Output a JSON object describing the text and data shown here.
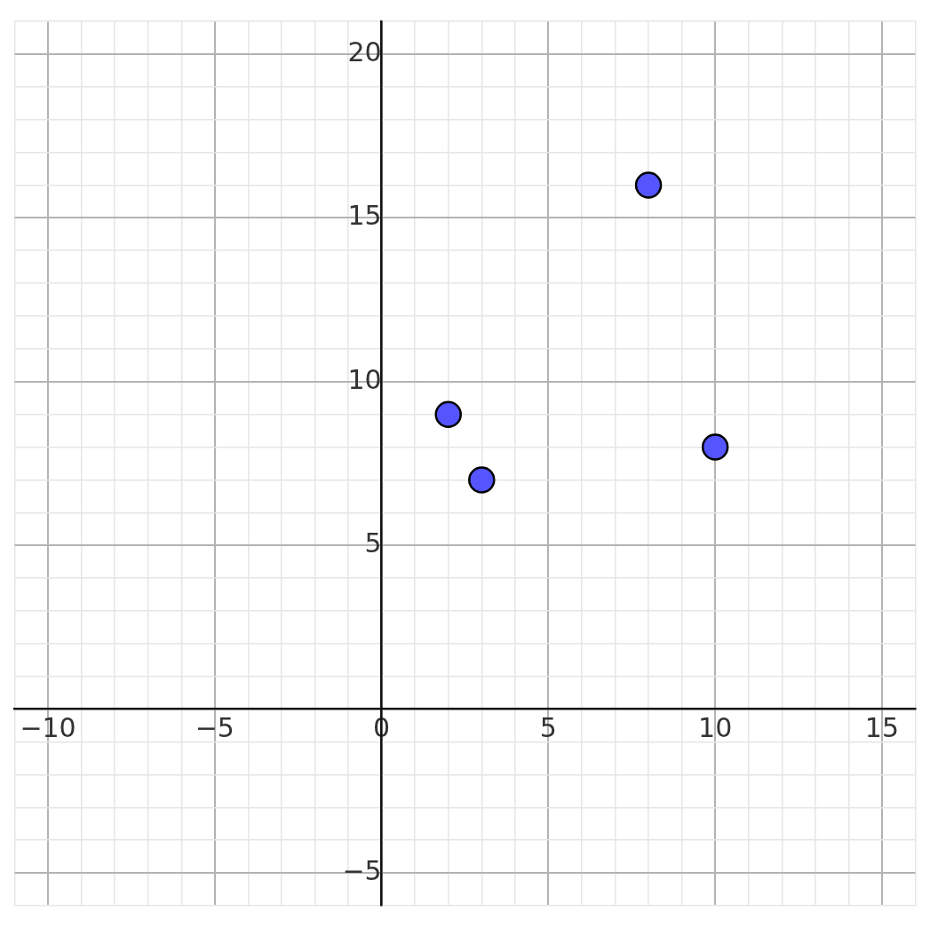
{
  "chart_data": {
    "type": "scatter",
    "x": [
      2,
      3,
      8,
      10
    ],
    "values": [
      9,
      7,
      16,
      8
    ],
    "color": "#5555ff",
    "marker": "circle",
    "grid": true,
    "legend": false,
    "xlim": [
      -11,
      16
    ],
    "ylim": [
      -6,
      21
    ],
    "xticks": [
      {
        "value": -11,
        "label": null
      },
      -10,
      {
        "value": -9,
        "label": null
      },
      {
        "value": -8,
        "label": null
      },
      {
        "value": -7,
        "label": null
      },
      {
        "value": -6,
        "label": null
      },
      -5,
      {
        "value": -4,
        "label": null
      },
      {
        "value": -3,
        "label": null
      },
      {
        "value": -2,
        "label": null
      },
      {
        "value": -1,
        "label": null
      },
      0,
      {
        "value": 1,
        "label": null
      },
      {
        "value": 2,
        "label": null
      },
      {
        "value": 3,
        "label": null
      },
      {
        "value": 4,
        "label": null
      },
      5,
      {
        "value": 6,
        "label": null
      },
      {
        "value": 7,
        "label": null
      },
      {
        "value": 8,
        "label": null
      },
      {
        "value": 9,
        "label": null
      },
      10,
      {
        "value": 11,
        "label": null
      },
      {
        "value": 12,
        "label": null
      },
      {
        "value": 13,
        "label": null
      },
      {
        "value": 14,
        "label": null
      },
      15,
      {
        "value": 16,
        "label": null
      }
    ],
    "yticks": [
      {
        "value": -6,
        "label": null
      },
      -5,
      {
        "value": -4,
        "label": null
      },
      {
        "value": -3,
        "label": null
      },
      {
        "value": -2,
        "label": null
      },
      {
        "value": -1,
        "label": null
      },
      {
        "value": 0,
        "label": null
      },
      {
        "value": 1,
        "label": null
      },
      {
        "value": 2,
        "label": null
      },
      {
        "value": 3,
        "label": null
      },
      {
        "value": 4,
        "label": null
      },
      5,
      {
        "value": 6,
        "label": null
      },
      {
        "value": 7,
        "label": null
      },
      {
        "value": 8,
        "label": null
      },
      {
        "value": 9,
        "label": null
      },
      10,
      {
        "value": 11,
        "label": null
      },
      {
        "value": 12,
        "label": null
      },
      {
        "value": 13,
        "label": null
      },
      {
        "value": 14,
        "label": null
      },
      15,
      {
        "value": 16,
        "label": null
      },
      {
        "value": 17,
        "label": null
      },
      {
        "value": 18,
        "label": null
      },
      {
        "value": 19,
        "label": null
      },
      20,
      {
        "value": 21,
        "label": null
      }
    ]
  }
}
